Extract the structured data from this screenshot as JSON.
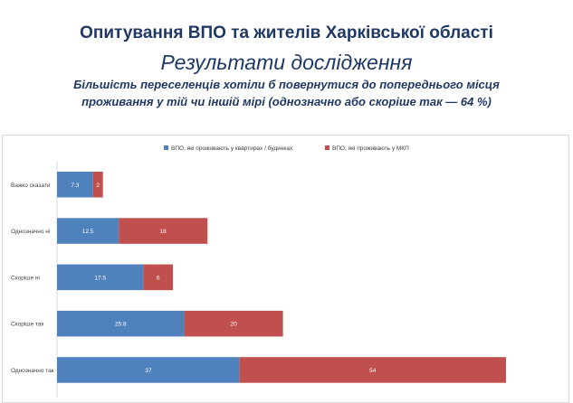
{
  "header": {
    "title": "Опитування ВПО та жителів Харківської області",
    "subtitle": "Результати дослідження",
    "finding": "Більшість переселенців хотіли б повернутися до попереднього місця проживання у тій чи іншій мірі (однозначно або скоріше так — 64 %)"
  },
  "chart_data": {
    "type": "bar",
    "orientation": "horizontal",
    "stacked": true,
    "categories": [
      "Важко сказати",
      "Однозначно ні",
      "Скоріше ні",
      "Скоріше так",
      "Однозначно так"
    ],
    "series": [
      {
        "name": "ВПО, які проживають у квартирах / будинках",
        "color": "#4f81bd",
        "values": [
          7.3,
          12.5,
          17.5,
          25.8,
          37
        ]
      },
      {
        "name": "ВПО, які проживають у МКП",
        "color": "#c0504d",
        "values": [
          2,
          18,
          6,
          20,
          54
        ]
      }
    ],
    "legend_position": "top",
    "grid": false,
    "xlim": [
      0,
      100
    ]
  }
}
